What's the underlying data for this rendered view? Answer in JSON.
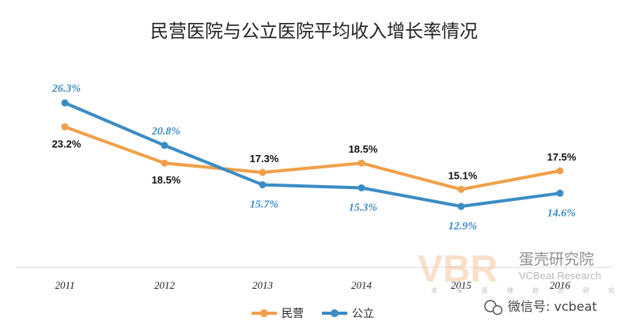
{
  "chart_data": {
    "type": "line",
    "title": "民营医院与公立医院平均收入增长率情况",
    "xlabel": "",
    "ylabel": "",
    "ylim": [
      5,
      30
    ],
    "grid": false,
    "legend_position": "bottom-center",
    "categories": [
      "2011",
      "2012",
      "2013",
      "2014",
      "2015",
      "2016"
    ],
    "series": [
      {
        "name": "民营",
        "color": "#f0a04b",
        "values": [
          23.2,
          18.5,
          17.3,
          18.5,
          15.1,
          17.5
        ],
        "labels": [
          "23.2%",
          "18.5%",
          "17.3%",
          "18.5%",
          "15.1%",
          "17.5%"
        ]
      },
      {
        "name": "公立",
        "color": "#3b8cc4",
        "values": [
          26.3,
          20.8,
          15.7,
          15.3,
          12.9,
          14.6
        ],
        "labels": [
          "26.3%",
          "20.8%",
          "15.7%",
          "15.3%",
          "12.9%",
          "14.6%"
        ]
      }
    ]
  },
  "watermark": {
    "logo": "VBR",
    "name": "蛋壳研究院",
    "name_en": "VCBeat Research",
    "slogan": "未来医健趋势研究",
    "wechat": "微信号: vcbeat",
    "wechat_icon": "wechat-icon"
  }
}
